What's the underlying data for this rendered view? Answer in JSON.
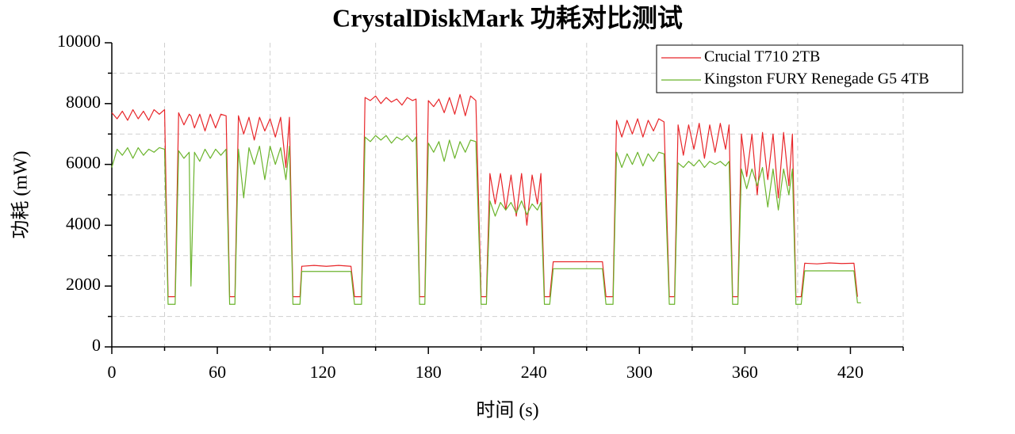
{
  "chart_data": {
    "type": "line",
    "title": "CrystalDiskMark 功耗对比测试",
    "xlabel": "时间 (s)",
    "ylabel": "功耗 (mW)",
    "xlim": [
      0,
      450
    ],
    "ylim": [
      0,
      10000
    ],
    "xticks": [
      0,
      60,
      120,
      180,
      240,
      300,
      360,
      420
    ],
    "yticks": [
      0,
      2000,
      4000,
      6000,
      8000,
      10000
    ],
    "xgrid": [
      30,
      90,
      150,
      210,
      270,
      330,
      390,
      450
    ],
    "ygrid": [
      1000,
      3000,
      5000,
      7000,
      9000
    ],
    "legend": "upper right",
    "x": [
      0,
      3,
      6,
      9,
      12,
      15,
      18,
      21,
      24,
      27,
      30,
      32,
      36,
      38,
      41,
      44,
      45,
      47,
      50,
      53,
      56,
      59,
      62,
      65,
      67,
      70,
      72,
      75,
      78,
      81,
      84,
      87,
      90,
      93,
      96,
      99,
      101,
      103,
      107,
      108,
      115,
      122,
      129,
      136,
      138,
      142,
      144,
      147,
      150,
      153,
      156,
      159,
      162,
      165,
      168,
      171,
      173,
      175,
      178,
      180,
      183,
      186,
      189,
      192,
      195,
      198,
      201,
      204,
      207,
      210,
      213,
      215,
      218,
      221,
      224,
      227,
      230,
      233,
      236,
      239,
      242,
      244,
      246,
      249,
      251,
      258,
      265,
      272,
      279,
      281,
      285,
      287,
      290,
      293,
      296,
      299,
      302,
      305,
      308,
      311,
      314,
      317,
      320,
      322,
      325,
      328,
      331,
      334,
      337,
      340,
      343,
      346,
      349,
      351,
      353,
      356,
      358,
      361,
      364,
      367,
      370,
      373,
      376,
      379,
      382,
      385,
      387,
      389,
      392,
      394,
      401,
      408,
      415,
      422,
      424,
      426
    ],
    "series": [
      {
        "name": "Crucial T710 2TB",
        "color": "#e8262a",
        "values": [
          7700,
          7500,
          7750,
          7450,
          7800,
          7500,
          7750,
          7450,
          7800,
          7650,
          7800,
          1650,
          1650,
          7700,
          7300,
          7650,
          7600,
          7200,
          7650,
          7100,
          7650,
          7200,
          7650,
          7600,
          1650,
          1650,
          7600,
          7000,
          7550,
          6800,
          7550,
          7100,
          7500,
          6900,
          7550,
          5900,
          7550,
          1650,
          1650,
          2650,
          2680,
          2650,
          2680,
          2650,
          1650,
          1650,
          8200,
          8100,
          8250,
          8000,
          8200,
          8050,
          8150,
          7950,
          8200,
          8100,
          8150,
          1650,
          1650,
          8100,
          7900,
          8150,
          7700,
          8200,
          7650,
          8300,
          7600,
          8250,
          8100,
          1650,
          1650,
          5700,
          4700,
          5700,
          4500,
          5650,
          4300,
          5700,
          4000,
          5650,
          4700,
          5700,
          1650,
          1650,
          2800,
          2800,
          2800,
          2800,
          2800,
          1650,
          1650,
          7450,
          6900,
          7450,
          7000,
          7500,
          6900,
          7450,
          7100,
          7500,
          7400,
          1650,
          1650,
          7300,
          6300,
          7300,
          6500,
          7350,
          6200,
          7300,
          6400,
          7350,
          6500,
          7300,
          1650,
          1650,
          7000,
          5600,
          7000,
          5000,
          7050,
          5500,
          7000,
          4900,
          7050,
          5300,
          7000,
          1650,
          1650,
          2750,
          2730,
          2760,
          2740,
          2750,
          1650,
          null
        ]
      },
      {
        "name": "Kingston FURY Renegade G5 4TB",
        "color": "#6bb42c",
        "values": [
          5900,
          6500,
          6300,
          6550,
          6200,
          6550,
          6300,
          6500,
          6400,
          6550,
          6500,
          1400,
          1400,
          6450,
          6200,
          6400,
          2000,
          6400,
          6100,
          6500,
          6200,
          6500,
          6300,
          6500,
          1400,
          1400,
          6500,
          4900,
          6550,
          6000,
          6600,
          5500,
          6600,
          6000,
          6550,
          5500,
          6600,
          1400,
          1400,
          2480,
          2480,
          2480,
          2480,
          2480,
          1400,
          1400,
          6900,
          6750,
          6950,
          6800,
          6950,
          6700,
          6900,
          6800,
          6950,
          6750,
          6900,
          1400,
          1400,
          6700,
          6400,
          6750,
          6100,
          6800,
          6200,
          6750,
          6400,
          6800,
          6750,
          1400,
          1400,
          4800,
          4300,
          4750,
          4500,
          4750,
          4400,
          4800,
          4350,
          4700,
          4500,
          4750,
          1400,
          1400,
          2570,
          2570,
          2570,
          2570,
          2570,
          1400,
          1400,
          6400,
          5900,
          6350,
          6000,
          6400,
          5950,
          6350,
          6100,
          6400,
          6350,
          1400,
          1400,
          6050,
          5900,
          6100,
          5950,
          6150,
          5900,
          6100,
          6000,
          6100,
          5950,
          6100,
          1400,
          1400,
          5850,
          5200,
          5850,
          5300,
          5900,
          4600,
          5850,
          4500,
          5850,
          5000,
          5850,
          1400,
          1400,
          2500,
          2500,
          2500,
          2500,
          2500,
          1450,
          1450
        ]
      }
    ]
  }
}
